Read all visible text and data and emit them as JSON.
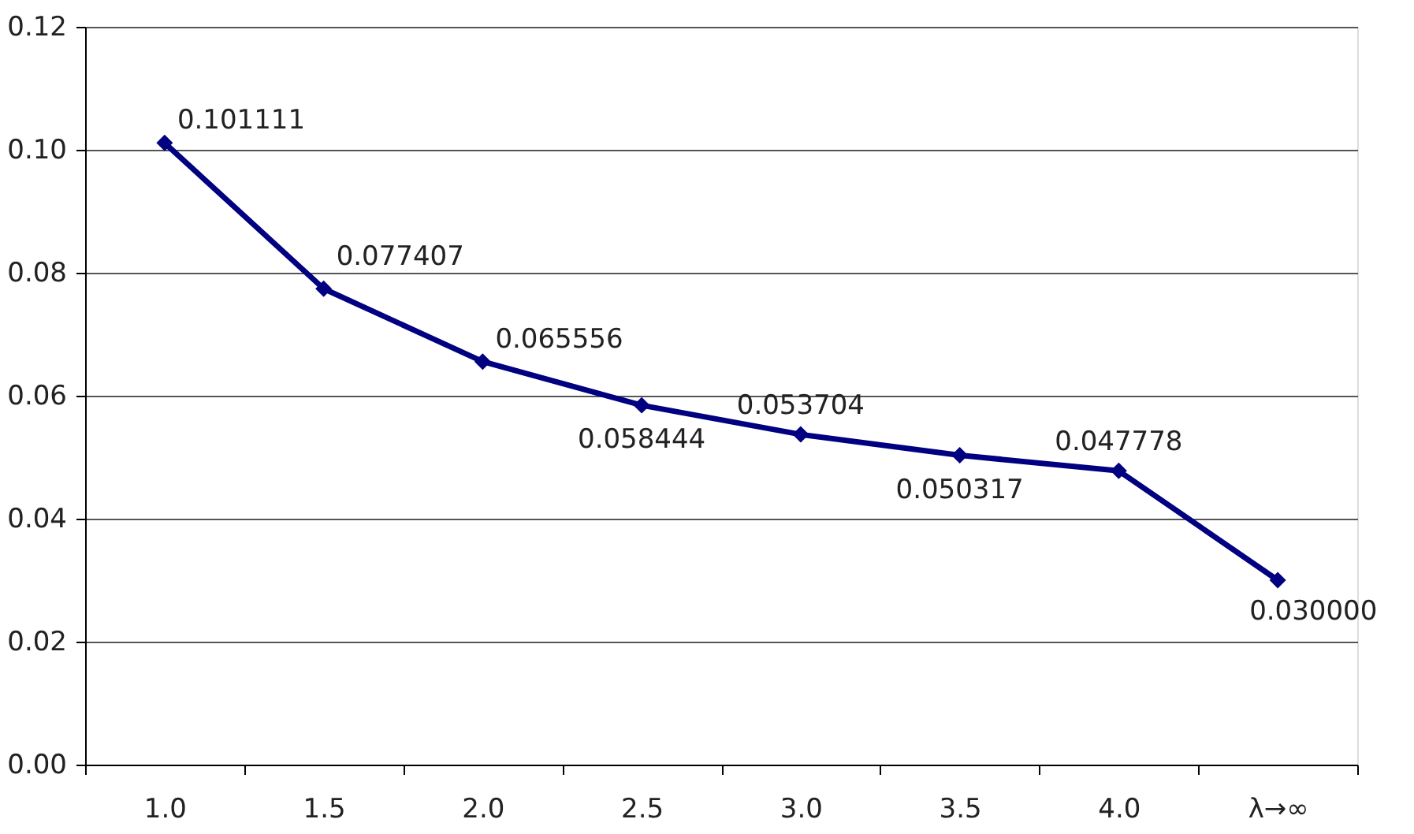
{
  "chart_data": {
    "type": "line",
    "categories": [
      "1.0",
      "1.5",
      "2.0",
      "2.5",
      "3.0",
      "3.5",
      "4.0",
      "λ→∞"
    ],
    "series": [
      {
        "color": "#000080",
        "values": [
          0.101111,
          0.077407,
          0.065556,
          0.058444,
          0.053704,
          0.050317,
          0.047778,
          0.03
        ],
        "value_labels": [
          "0.101111",
          "0.077407",
          "0.065556",
          "0.058444",
          "0.053704",
          "0.050317",
          "0.047778",
          "0.030000"
        ]
      }
    ],
    "ylim": [
      0,
      0.12
    ],
    "yticks": [
      {
        "value": 0,
        "label": "0.00"
      },
      {
        "value": 0.02,
        "label": "0.02"
      },
      {
        "value": 0.04,
        "label": "0.04"
      },
      {
        "value": 0.06,
        "label": "0.06"
      },
      {
        "value": 0.08,
        "label": "0.08"
      },
      {
        "value": 0.1,
        "label": "0.10"
      },
      {
        "value": 0.12,
        "label": "0.12"
      }
    ],
    "grid": "y",
    "marker": "diamond",
    "line_style": "solid"
  }
}
